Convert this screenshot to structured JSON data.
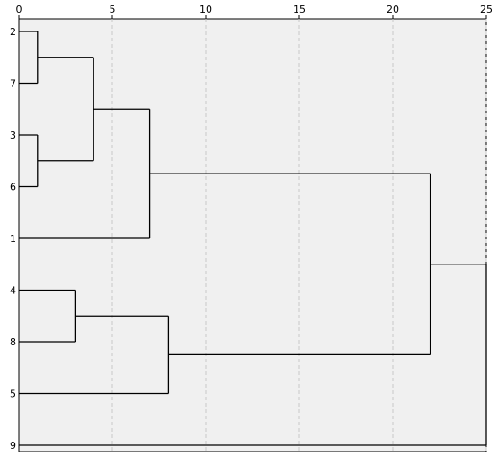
{
  "chart_data": {
    "type": "dendrogram",
    "x_axis": {
      "ticks": [
        0,
        5,
        10,
        15,
        20,
        25
      ],
      "range": [
        0,
        25
      ],
      "grid": "dashed-vertical"
    },
    "leaves": [
      "2",
      "7",
      "3",
      "6",
      "1",
      "4",
      "8",
      "5",
      "9"
    ],
    "merges": [
      {
        "children": [
          "2",
          "7"
        ],
        "height": 1
      },
      {
        "children": [
          "3",
          "6"
        ],
        "height": 1
      },
      {
        "children": [
          "2-7",
          "3-6"
        ],
        "height": 4
      },
      {
        "children": [
          "2-7-3-6",
          "1"
        ],
        "height": 7
      },
      {
        "children": [
          "4",
          "8"
        ],
        "height": 3
      },
      {
        "children": [
          "4-8",
          "5"
        ],
        "height": 8
      },
      {
        "children": [
          "2-7-3-6-1",
          "4-8-5"
        ],
        "height": 22
      },
      {
        "children": [
          "all-except-9",
          "9"
        ],
        "height": 25
      }
    ]
  },
  "colors": {
    "plot_bg": "#f0f0f0",
    "frame": "#000000",
    "grid": "#c8c8c8",
    "lines": "#000000"
  }
}
